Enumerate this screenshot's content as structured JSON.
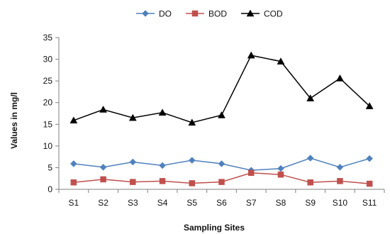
{
  "chart_data": {
    "type": "line",
    "xlabel": "Sampling Sites",
    "ylabel": "Values in mg/l",
    "ylim": [
      0,
      35
    ],
    "yticks": [
      0,
      5,
      10,
      15,
      20,
      25,
      30,
      35
    ],
    "categories": [
      "S1",
      "S2",
      "S3",
      "S4",
      "S5",
      "S6",
      "S7",
      "S8",
      "S9",
      "S10",
      "S11"
    ],
    "legend_position": "top",
    "grid": false,
    "series": [
      {
        "name": "DO",
        "color": "#4F81BD",
        "marker": "diamond",
        "values": [
          5.9,
          5.1,
          6.3,
          5.5,
          6.7,
          5.9,
          4.4,
          4.8,
          7.2,
          5.1,
          7.1
        ]
      },
      {
        "name": "BOD",
        "color": "#C0504D",
        "marker": "square",
        "values": [
          1.6,
          2.3,
          1.7,
          1.9,
          1.4,
          1.7,
          3.8,
          3.4,
          1.6,
          1.9,
          1.3
        ]
      },
      {
        "name": "COD",
        "color": "#000000",
        "marker": "triangle",
        "values": [
          15.9,
          18.4,
          16.5,
          17.7,
          15.4,
          17.1,
          30.9,
          29.5,
          21.0,
          25.6,
          19.2
        ]
      }
    ]
  }
}
